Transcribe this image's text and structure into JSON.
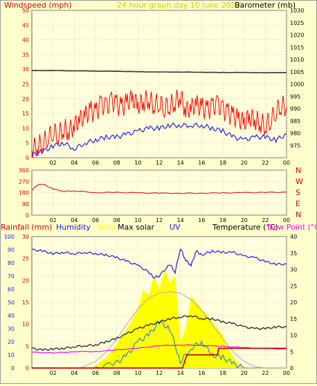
{
  "colors": {
    "background": "#ffffcc",
    "plot_bg": "#ffffdd",
    "grid": "#c8c8a0",
    "wind_speed": "#ff0000",
    "wind_gust_like": "#e00000",
    "barometer": "#333333",
    "avg_wind": "#2020e0",
    "wind_dir": "#dd2222",
    "humidity": "#1a1add",
    "solar": "#ffff00",
    "max_solar": "#aaaaaa",
    "uv": "#2288cc",
    "temperature": "#333333",
    "dew_point": "#ff00ff",
    "rainfall": "#cc0000",
    "title": "#cccc00"
  },
  "header": {
    "title": "24 hour graph day   10 June 2022",
    "windspeed_label": "Windspeed (mph)",
    "barometer_label": "Barometer (mb)"
  },
  "legend": {
    "rainfall": "Rainfall (mm)",
    "humidity": "Humidity",
    "solar": "Solar",
    "max_solar": "Max solar",
    "uv": "UV",
    "temperature": "Temperature (°C)",
    "dew_point": "Dew Point (°C)"
  },
  "chart_data": [
    {
      "type": "line",
      "x_ticks": [
        "02",
        "04",
        "06",
        "08",
        "10",
        "12",
        "14",
        "16",
        "18",
        "20",
        "22",
        "00"
      ],
      "ylim_left": [
        0,
        50
      ],
      "yticks_left": [
        0,
        5,
        10,
        15,
        20,
        25,
        30,
        35,
        40,
        45,
        50
      ],
      "ylim_right": [
        970,
        1030
      ],
      "yticks_right": [
        975,
        980,
        985,
        990,
        995,
        1000,
        1005,
        1010,
        1015,
        1020,
        1025,
        1030
      ],
      "grid": true,
      "series": [
        {
          "name": "Windspeed (mph)",
          "axis": "left",
          "hours": [
            0,
            0.5,
            1,
            1.5,
            2,
            2.5,
            3,
            3.5,
            4,
            4.5,
            5,
            5.5,
            6,
            6.5,
            7,
            7.5,
            8,
            8.5,
            9,
            9.5,
            10,
            10.5,
            11,
            11.5,
            12,
            12.5,
            13,
            13.5,
            14,
            14.5,
            15,
            15.5,
            16,
            16.5,
            17,
            17.5,
            18,
            18.5,
            19,
            19.5,
            20,
            20.5,
            21,
            21.5,
            22,
            22.5,
            23,
            23.5,
            24
          ],
          "values": [
            3,
            4,
            5,
            7,
            9,
            8,
            10,
            9,
            11,
            13,
            14,
            16,
            15,
            18,
            17,
            19,
            18,
            17,
            19,
            20,
            18,
            19,
            20,
            18,
            19,
            17,
            18,
            19,
            21,
            16,
            17,
            18,
            17,
            16,
            17,
            18,
            16,
            15,
            14,
            13,
            12,
            14,
            13,
            12,
            11,
            13,
            16,
            18,
            17
          ]
        },
        {
          "name": "Average wind",
          "axis": "left",
          "hours": [
            0,
            1,
            2,
            3,
            4,
            5,
            6,
            7,
            8,
            9,
            10,
            11,
            12,
            13,
            14,
            15,
            16,
            17,
            18,
            19,
            20,
            21,
            22,
            23,
            24
          ],
          "values": [
            1,
            2,
            4,
            5,
            3,
            5,
            6,
            7,
            7,
            8,
            9,
            10,
            10,
            11,
            11,
            11,
            11,
            10,
            9,
            7,
            6,
            7,
            7,
            6,
            8
          ]
        },
        {
          "name": "Barometer (mb)",
          "axis": "right",
          "hours": [
            0,
            2,
            4,
            6,
            8,
            10,
            12,
            14,
            16,
            18,
            20,
            22,
            24
          ],
          "values": [
            1005.5,
            1005.5,
            1005.4,
            1005.3,
            1005.2,
            1005.0,
            1004.9,
            1004.9,
            1004.8,
            1004.7,
            1004.7,
            1004.6,
            1004.7
          ]
        }
      ]
    },
    {
      "type": "line",
      "x_ticks": [
        "02",
        "04",
        "06",
        "08",
        "10",
        "12",
        "14",
        "16",
        "18",
        "20",
        "22",
        "00"
      ],
      "ylim": [
        0,
        360
      ],
      "yticks": [
        0,
        90,
        180,
        270,
        360
      ],
      "direction_labels": [
        "N",
        "W",
        "S",
        "E",
        "N"
      ],
      "grid": true,
      "series": [
        {
          "name": "Wind direction",
          "hours": [
            0,
            0.5,
            1,
            2,
            3,
            4,
            6,
            8,
            10,
            12,
            14,
            16,
            18,
            20,
            22,
            24
          ],
          "values": [
            200,
            240,
            250,
            210,
            190,
            195,
            180,
            182,
            178,
            176,
            175,
            176,
            178,
            180,
            182,
            184
          ]
        }
      ]
    },
    {
      "type": "line",
      "x_ticks": [
        "02",
        "04",
        "06",
        "08",
        "10",
        "12",
        "14",
        "16",
        "18",
        "20",
        "22",
        "00"
      ],
      "ylim_humidity": [
        0,
        100
      ],
      "yticks_humidity": [
        0,
        10,
        20,
        30,
        40,
        50,
        60,
        70,
        80,
        90,
        100
      ],
      "ylim_rain": [
        0,
        30
      ],
      "yticks_rain": [
        0,
        5,
        10,
        15,
        20,
        25,
        30
      ],
      "ylim_temp": [
        0,
        40
      ],
      "yticks_temp": [
        0,
        5,
        10,
        15,
        20,
        25,
        30,
        35,
        40
      ],
      "grid": true,
      "series": [
        {
          "name": "Humidity",
          "axis": "humidity",
          "hours": [
            0,
            1,
            2,
            3,
            4,
            5,
            6,
            7,
            8,
            9,
            10,
            11,
            11.5,
            12,
            13,
            13.5,
            14,
            14.5,
            15,
            15.5,
            16,
            17,
            18,
            19,
            20,
            21,
            22,
            23,
            24
          ],
          "values": [
            90,
            89,
            87,
            88,
            87,
            88,
            87,
            86,
            84,
            81,
            78,
            73,
            69,
            70,
            79,
            73,
            91,
            82,
            78,
            89,
            86,
            89,
            88,
            88,
            85,
            84,
            81,
            79,
            79
          ]
        },
        {
          "name": "Temperature (°C)",
          "axis": "temp",
          "hours": [
            0,
            1,
            2,
            3,
            4,
            5,
            6,
            7,
            8,
            9,
            10,
            11,
            12,
            13,
            14,
            15,
            16,
            17,
            18,
            19,
            20,
            21,
            22,
            23,
            24
          ],
          "values": [
            6,
            5.5,
            5.8,
            6,
            6.5,
            6.8,
            7,
            8,
            9,
            10.5,
            12,
            13,
            14,
            15,
            15.5,
            16,
            15,
            15,
            14,
            13.5,
            12.5,
            12,
            12,
            12.5,
            12.5
          ]
        },
        {
          "name": "Dew Point (°C)",
          "axis": "temp",
          "hours": [
            0,
            2,
            4,
            6,
            8,
            10,
            12,
            14,
            16,
            18,
            20,
            22,
            24
          ],
          "values": [
            4.8,
            4.6,
            5.0,
            5.0,
            5.5,
            6.0,
            6.8,
            7.0,
            6.9,
            6.6,
            6.2,
            5.9,
            5.8
          ]
        },
        {
          "name": "Max solar",
          "axis": "humidity",
          "hours": [
            4.5,
            6,
            7,
            8,
            9,
            10,
            11,
            12,
            13,
            14,
            15,
            16,
            17,
            18,
            19,
            20,
            21,
            22
          ],
          "values": [
            0,
            5,
            12,
            22,
            34,
            45,
            53,
            57,
            58,
            57,
            52,
            44,
            33,
            22,
            12,
            5,
            1,
            0
          ]
        },
        {
          "name": "Solar",
          "axis": "humidity",
          "hours": [
            5.5,
            6,
            7,
            8,
            9,
            10,
            10.5,
            11,
            11.5,
            12,
            12.5,
            13,
            13.5,
            14,
            14.5,
            15,
            15.5,
            16,
            16.5,
            17,
            17.5,
            18,
            18.5,
            19,
            19.5,
            20
          ],
          "values": [
            0,
            2,
            8,
            18,
            30,
            45,
            60,
            55,
            70,
            60,
            75,
            65,
            70,
            20,
            30,
            55,
            50,
            45,
            40,
            35,
            30,
            25,
            15,
            8,
            3,
            0
          ]
        },
        {
          "name": "UV",
          "axis": "humidity",
          "hours": [
            6,
            8,
            9,
            10,
            11,
            12,
            13,
            14,
            15,
            16,
            17,
            18,
            19,
            20
          ],
          "values": [
            0,
            4,
            10,
            20,
            25,
            35,
            30,
            5,
            15,
            20,
            10,
            8,
            3,
            0
          ]
        },
        {
          "name": "Rainfall (mm)",
          "axis": "rain",
          "hours": [
            0,
            14.2,
            14.6,
            17.5,
            17.6,
            24
          ],
          "values": [
            0,
            0,
            3,
            3,
            4.5,
            4.5
          ]
        }
      ]
    }
  ]
}
